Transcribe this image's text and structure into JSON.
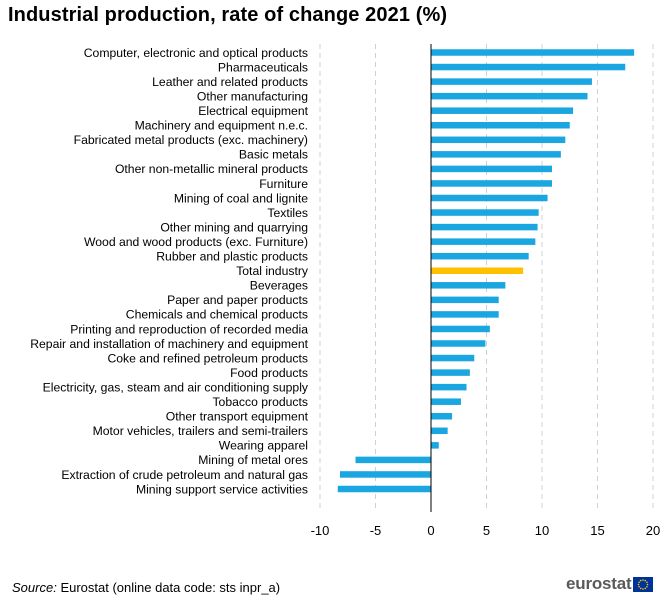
{
  "header": {
    "title": "Industrial production, rate of change 2021 (%)"
  },
  "chart_data": {
    "type": "bar",
    "orientation": "horizontal",
    "title": "Industrial production, rate of change 2021 (%)",
    "xlabel": "",
    "ylabel": "",
    "xlim": [
      -10,
      20
    ],
    "xticks": [
      "-10",
      "-5",
      "0",
      "5",
      "10",
      "15",
      "20"
    ],
    "grid": true,
    "categories": [
      "Computer, electronic and optical products",
      "Pharmaceuticals",
      "Leather and related products",
      "Other manufacturing",
      "Electrical equipment",
      "Machinery and equipment n.e.c.",
      "Fabricated metal products (exc. machinery)",
      "Basic metals",
      "Other non-metallic mineral products",
      "Furniture",
      "Mining of coal and lignite",
      "Textiles",
      "Other mining and quarrying",
      "Wood and wood products (exc. Furniture)",
      "Rubber and plastic products",
      "Total industry",
      "Beverages",
      "Paper and paper products",
      "Chemicals and chemical products",
      "Printing and reproduction of recorded media",
      "Repair and installation of machinery and equipment",
      "Coke and refined petroleum products",
      "Food products",
      "Electricity, gas, steam and air conditioning supply",
      "Tobacco products",
      "Other transport equipment",
      "Motor vehicles, trailers and semi-trailers",
      "Wearing apparel",
      "Mining of metal ores",
      "Extraction of crude petroleum and natural gas",
      "Mining support service activities"
    ],
    "values": [
      18.3,
      17.5,
      14.5,
      14.1,
      12.8,
      12.5,
      12.1,
      11.7,
      10.9,
      10.9,
      10.5,
      9.7,
      9.6,
      9.4,
      8.8,
      8.3,
      6.7,
      6.1,
      6.1,
      5.3,
      4.9,
      3.9,
      3.5,
      3.2,
      2.7,
      1.9,
      1.5,
      0.7,
      -6.8,
      -8.2,
      -8.4
    ],
    "highlight_category": "Total industry",
    "colors": {
      "bar": "#1aa6e0",
      "highlight": "#ffc000",
      "grid": "#d0d0d0",
      "axis": "#000000"
    }
  },
  "footer": {
    "source_label": "Source:",
    "source_text": "Eurostat (online data code: sts inpr_a)",
    "brand": "eurostat"
  }
}
